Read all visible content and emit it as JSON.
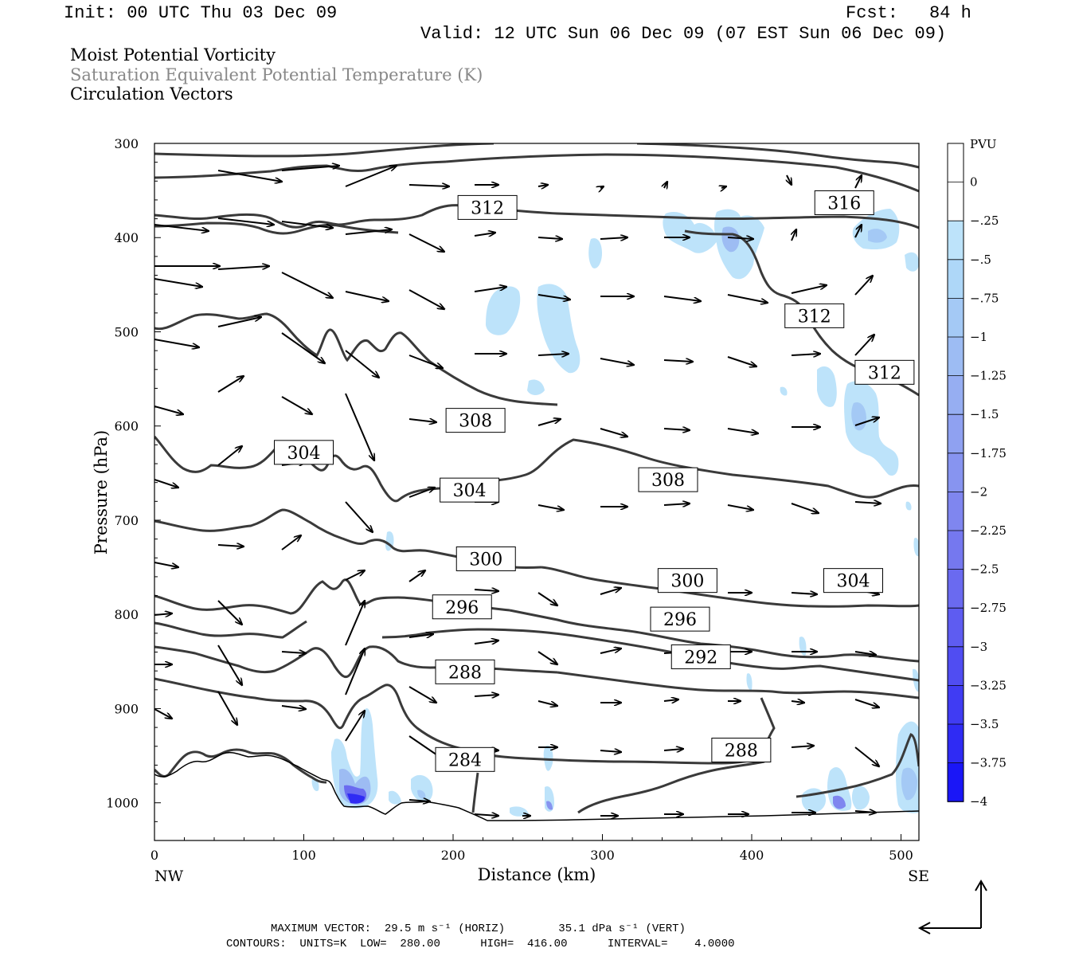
{
  "header": {
    "init": "Init: 00 UTC Thu 03 Dec 09",
    "fcst_label": "Fcst:",
    "fcst_value": "84 h",
    "valid": "Valid: 12 UTC Sun 06 Dec 09 (07 EST Sun 06 Dec 09)"
  },
  "fields": {
    "line1": "Moist Potential Vorticity",
    "line2": "Saturation Equivalent Potential Temperature (K)",
    "line3": "Circulation Vectors",
    "line2_color": "#888888"
  },
  "footer": {
    "max_vector": "MAXIMUM VECTOR:  29.5 m s⁻¹ (HORIZ)        35.1 dPa s⁻¹ (VERT)",
    "contours": "CONTOURS:  UNITS=K  LOW=  280.00      HIGH=  416.00      INTERVAL=    4.0000"
  },
  "chart_data": {
    "type": "cross-section",
    "xlabel": "Distance (km)",
    "ylabel": "Pressure (hPa)",
    "x_ticks": [
      0,
      100,
      200,
      300,
      400,
      500
    ],
    "y_ticks": [
      300,
      400,
      500,
      600,
      700,
      800,
      900,
      1000
    ],
    "xlim": [
      0,
      512
    ],
    "ylim": [
      1040,
      300
    ],
    "left_end_label": "NW",
    "right_end_label": "SE",
    "colorbar": {
      "unit": "PVU",
      "labels": [
        "0",
        "−.25",
        "−.5",
        "−.75",
        "−1",
        "−1.25",
        "−1.5",
        "−1.75",
        "−2",
        "−2.25",
        "−2.5",
        "−2.75",
        "−3",
        "−3.25",
        "−3.5",
        "−3.75",
        "−4"
      ],
      "colors": [
        "#ffffff",
        "#ffffff",
        "#bde3fa",
        "#aed7f8",
        "#a4c9f5",
        "#9dbcf3",
        "#96aef2",
        "#8fa1f1",
        "#8794f0",
        "#7f86ef",
        "#7578ef",
        "#6a6af0",
        "#5e5cf1",
        "#504df2",
        "#403cf3",
        "#2f2bf4",
        "#1a16f7"
      ]
    },
    "contour_labels": [
      {
        "text": "312",
        "x": 223,
        "p": 368
      },
      {
        "text": "316",
        "x": 462,
        "p": 363
      },
      {
        "text": "312",
        "x": 442,
        "p": 483
      },
      {
        "text": "312",
        "x": 489,
        "p": 543
      },
      {
        "text": "308",
        "x": 215,
        "p": 594
      },
      {
        "text": "308",
        "x": 344,
        "p": 657
      },
      {
        "text": "304",
        "x": 100,
        "p": 628
      },
      {
        "text": "304",
        "x": 211,
        "p": 668
      },
      {
        "text": "300",
        "x": 222,
        "p": 741
      },
      {
        "text": "300",
        "x": 357,
        "p": 764
      },
      {
        "text": "304",
        "x": 468,
        "p": 764
      },
      {
        "text": "296",
        "x": 206,
        "p": 792
      },
      {
        "text": "296",
        "x": 352,
        "p": 805
      },
      {
        "text": "292",
        "x": 366,
        "p": 845
      },
      {
        "text": "288",
        "x": 208,
        "p": 861
      },
      {
        "text": "288",
        "x": 393,
        "p": 944
      },
      {
        "text": "284",
        "x": 208,
        "p": 954
      }
    ]
  }
}
